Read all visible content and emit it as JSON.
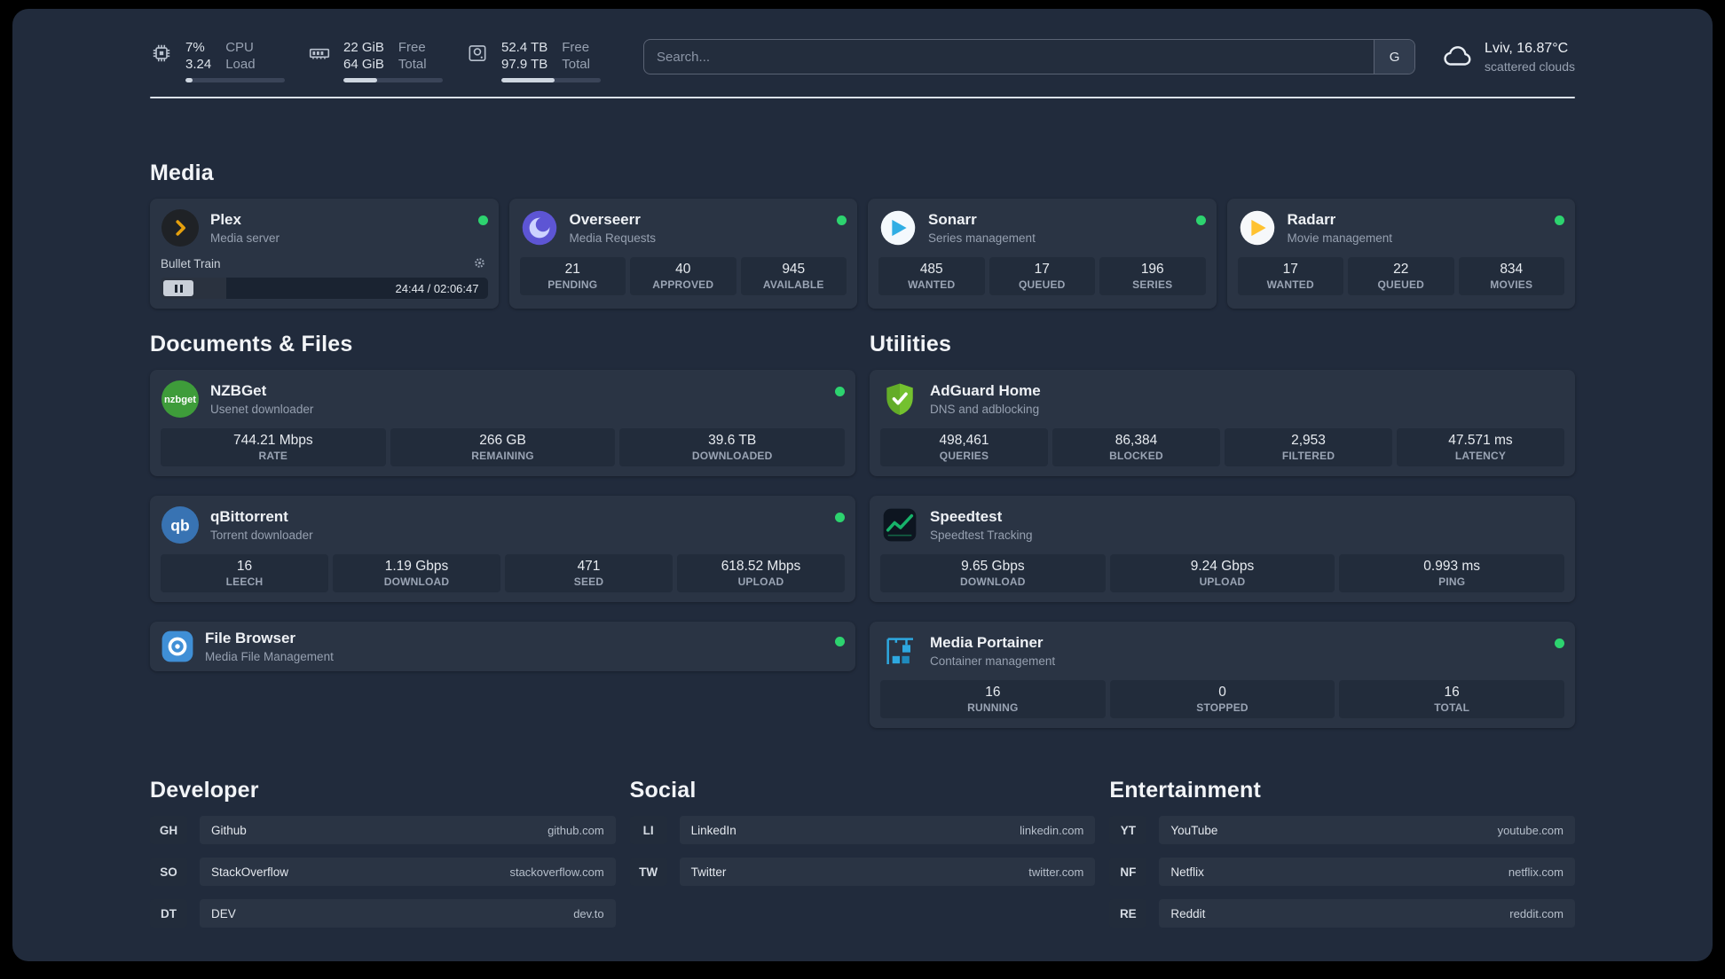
{
  "colors": {
    "status_online": "#2dd36f",
    "divider": "#dbe1e9",
    "plex_brand": "#e5a00d",
    "overseerr_brand": "#5d55d4",
    "sonarr_brand": "#30aee4",
    "radarr_brand": "#ffc230",
    "nzbget_brand": "#3e9c3a",
    "qbittorrent_brand": "#3873b3",
    "filebrowser_brand": "#3f8fd6",
    "adguard_brand": "#68b330",
    "speedtest_brand": "#17b26a",
    "portainer_brand": "#2ea8e0"
  },
  "topbar": {
    "cpu": {
      "value1": "7%",
      "value2": "3.24",
      "label1": "CPU",
      "label2": "Load",
      "bar_percent": 7
    },
    "memory": {
      "value1": "22 GiB",
      "value2": "64 GiB",
      "label1": "Free",
      "label2": "Total",
      "bar_percent": 34
    },
    "disk": {
      "value1": "52.4 TB",
      "value2": "97.9 TB",
      "label1": "Free",
      "label2": "Total",
      "bar_percent": 54
    },
    "search": {
      "placeholder": "Search...",
      "engine_button": "G"
    },
    "weather": {
      "location": "Lviv, 16.87°C",
      "condition": "scattered clouds"
    }
  },
  "sections": {
    "media": "Media",
    "documents": "Documents & Files",
    "utilities": "Utilities"
  },
  "services": {
    "plex": {
      "title": "Plex",
      "subtitle": "Media server",
      "now_playing": "Bullet Train",
      "elapsed_total": "24:44 / 02:06:47",
      "progress_percent": 20
    },
    "overseerr": {
      "title": "Overseerr",
      "subtitle": "Media Requests",
      "stats": [
        {
          "value": "21",
          "label": "PENDING"
        },
        {
          "value": "40",
          "label": "APPROVED"
        },
        {
          "value": "945",
          "label": "AVAILABLE"
        }
      ]
    },
    "sonarr": {
      "title": "Sonarr",
      "subtitle": "Series management",
      "stats": [
        {
          "value": "485",
          "label": "WANTED"
        },
        {
          "value": "17",
          "label": "QUEUED"
        },
        {
          "value": "196",
          "label": "SERIES"
        }
      ]
    },
    "radarr": {
      "title": "Radarr",
      "subtitle": "Movie management",
      "stats": [
        {
          "value": "17",
          "label": "WANTED"
        },
        {
          "value": "22",
          "label": "QUEUED"
        },
        {
          "value": "834",
          "label": "MOVIES"
        }
      ]
    },
    "nzbget": {
      "title": "NZBGet",
      "subtitle": "Usenet downloader",
      "stats": [
        {
          "value": "744.21 Mbps",
          "label": "RATE"
        },
        {
          "value": "266 GB",
          "label": "REMAINING"
        },
        {
          "value": "39.6 TB",
          "label": "DOWNLOADED"
        }
      ]
    },
    "qbittorrent": {
      "title": "qBittorrent",
      "subtitle": "Torrent downloader",
      "stats": [
        {
          "value": "16",
          "label": "LEECH"
        },
        {
          "value": "1.19 Gbps",
          "label": "DOWNLOAD"
        },
        {
          "value": "471",
          "label": "SEED"
        },
        {
          "value": "618.52 Mbps",
          "label": "UPLOAD"
        }
      ]
    },
    "filebrowser": {
      "title": "File Browser",
      "subtitle": "Media File Management"
    },
    "adguard": {
      "title": "AdGuard Home",
      "subtitle": "DNS and adblocking",
      "stats": [
        {
          "value": "498,461",
          "label": "QUERIES"
        },
        {
          "value": "86,384",
          "label": "BLOCKED"
        },
        {
          "value": "2,953",
          "label": "FILTERED"
        },
        {
          "value": "47.571 ms",
          "label": "LATENCY"
        }
      ]
    },
    "speedtest": {
      "title": "Speedtest",
      "subtitle": "Speedtest Tracking",
      "stats": [
        {
          "value": "9.65 Gbps",
          "label": "DOWNLOAD"
        },
        {
          "value": "9.24 Gbps",
          "label": "UPLOAD"
        },
        {
          "value": "0.993 ms",
          "label": "PING"
        }
      ]
    },
    "portainer": {
      "title": "Media Portainer",
      "subtitle": "Container management",
      "stats": [
        {
          "value": "16",
          "label": "RUNNING"
        },
        {
          "value": "0",
          "label": "STOPPED"
        },
        {
          "value": "16",
          "label": "TOTAL"
        }
      ]
    }
  },
  "bookmarks": {
    "developer": {
      "title": "Developer",
      "items": [
        {
          "abbr": "GH",
          "name": "Github",
          "url": "github.com"
        },
        {
          "abbr": "SO",
          "name": "StackOverflow",
          "url": "stackoverflow.com"
        },
        {
          "abbr": "DT",
          "name": "DEV",
          "url": "dev.to"
        }
      ]
    },
    "social": {
      "title": "Social",
      "items": [
        {
          "abbr": "LI",
          "name": "LinkedIn",
          "url": "linkedin.com"
        },
        {
          "abbr": "TW",
          "name": "Twitter",
          "url": "twitter.com"
        }
      ]
    },
    "entertainment": {
      "title": "Entertainment",
      "items": [
        {
          "abbr": "YT",
          "name": "YouTube",
          "url": "youtube.com"
        },
        {
          "abbr": "NF",
          "name": "Netflix",
          "url": "netflix.com"
        },
        {
          "abbr": "RE",
          "name": "Reddit",
          "url": "reddit.com"
        }
      ]
    }
  }
}
